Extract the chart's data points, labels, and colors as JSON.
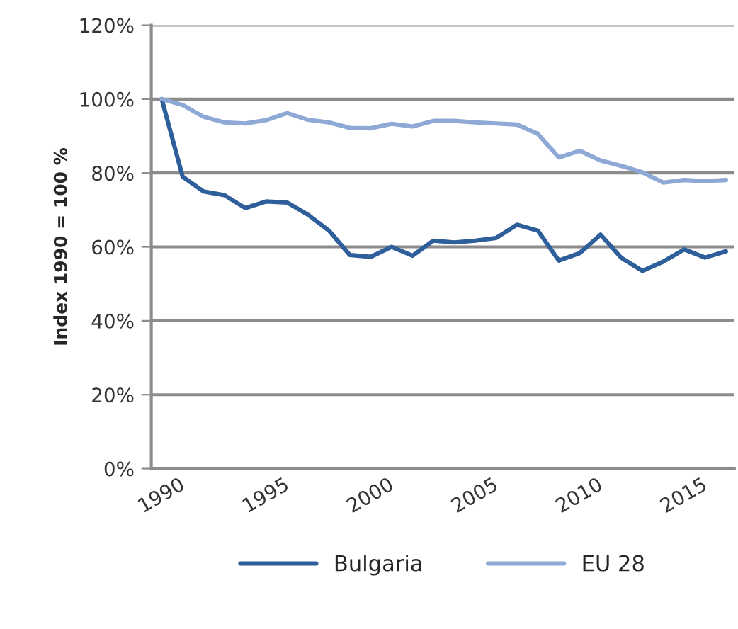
{
  "chart_data": {
    "type": "line",
    "ylabel": "Index 1990 = 100 %",
    "x": [
      1990,
      1991,
      1992,
      1993,
      1994,
      1995,
      1996,
      1997,
      1998,
      1999,
      2000,
      2001,
      2002,
      2003,
      2004,
      2005,
      2006,
      2007,
      2008,
      2009,
      2010,
      2011,
      2012,
      2013,
      2014,
      2015,
      2016,
      2017
    ],
    "series": [
      {
        "name": "Bulgaria",
        "color": "#2e5f9a",
        "values": [
          100,
          79,
          75,
          74,
          70.5,
          72.3,
          72,
          68.7,
          64.4,
          57.8,
          57.3,
          60,
          57.6,
          61.7,
          61.2,
          61.7,
          62.4,
          66,
          64.4,
          56.3,
          58.3,
          63.3,
          57,
          53.5,
          56,
          59.3,
          57.1,
          58.8
        ]
      },
      {
        "name": "EU 28",
        "color": "#8fa9d6",
        "values": [
          100,
          98.4,
          95.2,
          93.7,
          93.4,
          94.3,
          96.2,
          94.4,
          93.7,
          92.2,
          92.1,
          93.3,
          92.6,
          94.1,
          94.1,
          93.7,
          93.4,
          93.1,
          90.6,
          84.2,
          86,
          83.4,
          81.9,
          80.2,
          77.4,
          78.1,
          77.8,
          78.1
        ]
      }
    ],
    "xlim": [
      1989.5,
      2017.4
    ],
    "xticks": [
      1990,
      1995,
      2000,
      2005,
      2010,
      2015
    ],
    "ylim": [
      0,
      120
    ],
    "yticks": [
      {
        "value": 0,
        "label": "0%"
      },
      {
        "value": 20,
        "label": "20%"
      },
      {
        "value": 40,
        "label": "40%"
      },
      {
        "value": 60,
        "label": "60%"
      },
      {
        "value": 80,
        "label": "80%"
      },
      {
        "value": 100,
        "label": "100%"
      },
      {
        "value": 120,
        "label": "120%"
      }
    ],
    "grid": "y",
    "legend": "bottom",
    "line_style": "solid",
    "marker": "none"
  }
}
